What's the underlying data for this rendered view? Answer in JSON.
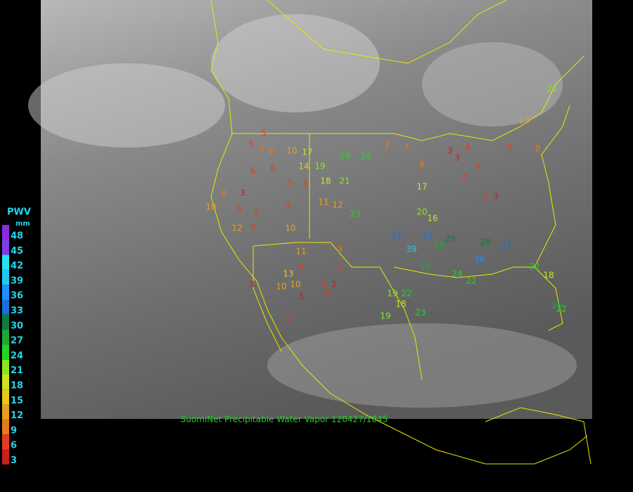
{
  "legend": {
    "title": "PWV",
    "unit": "mm",
    "ticks": [
      48,
      45,
      42,
      39,
      36,
      33,
      30,
      27,
      24,
      21,
      18,
      15,
      12,
      9,
      6,
      3
    ],
    "colors": [
      "#8a2be2",
      "#7b3fe6",
      "#1fe6f0",
      "#1fc8f0",
      "#1e90ff",
      "#1a6fd8",
      "#127a3a",
      "#1fa838",
      "#22d422",
      "#8be61e",
      "#c8e61e",
      "#e6c81e",
      "#e6a01e",
      "#e6781e",
      "#e63c1e",
      "#c81e1e"
    ]
  },
  "caption": "SuomiNet Precipitable Water Vapor 120427/1045",
  "stations": [
    5,
    5,
    8,
    8,
    10,
    17,
    24,
    24,
    7,
    7,
    6,
    6,
    14,
    19,
    18,
    21,
    5,
    5,
    3,
    8,
    10,
    5,
    5,
    4,
    11,
    12,
    23,
    20,
    16,
    32,
    33,
    39,
    26,
    29,
    29,
    31,
    36,
    22,
    18,
    22,
    26,
    24,
    22,
    25,
    19,
    22,
    19,
    18,
    23,
    12,
    4,
    10,
    11,
    9,
    5,
    4,
    2,
    6,
    6,
    13,
    10,
    10,
    3,
    3,
    5,
    3,
    4,
    4,
    4,
    5,
    3,
    6,
    10,
    8,
    21,
    3,
    8,
    17
  ]
}
